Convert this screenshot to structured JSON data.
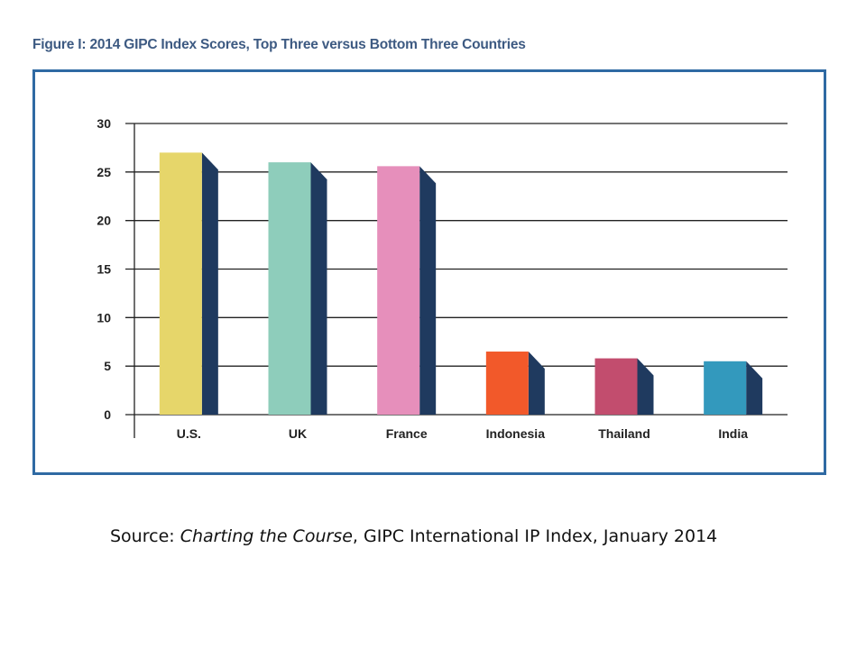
{
  "figure": {
    "title": "Figure I: 2014 GIPC Index Scores, Top Three versus Bottom Three Countries"
  },
  "source": {
    "prefix": "Source: ",
    "italic": "Charting the Course",
    "suffix": ", GIPC International IP Index, January 2014"
  },
  "colors": {
    "frame": "#2f6aa3",
    "side": "#1f3a5f",
    "grid": "#222222",
    "text": "#222222"
  },
  "chart_data": {
    "type": "bar",
    "title": "",
    "xlabel": "",
    "ylabel": "",
    "categories": [
      "U.S.",
      "UK",
      "France",
      "Indonesia",
      "Thailand",
      "India"
    ],
    "values": [
      27,
      26,
      25.6,
      6.5,
      5.8,
      5.5
    ],
    "bar_colors": [
      "#e6d66a",
      "#8ecdbb",
      "#e68fbb",
      "#f2592a",
      "#c24d6e",
      "#3399bd"
    ],
    "ylim": [
      0,
      30
    ],
    "yticks": [
      0,
      5,
      10,
      15,
      20,
      25,
      30
    ],
    "grid": true,
    "legend": "none"
  }
}
